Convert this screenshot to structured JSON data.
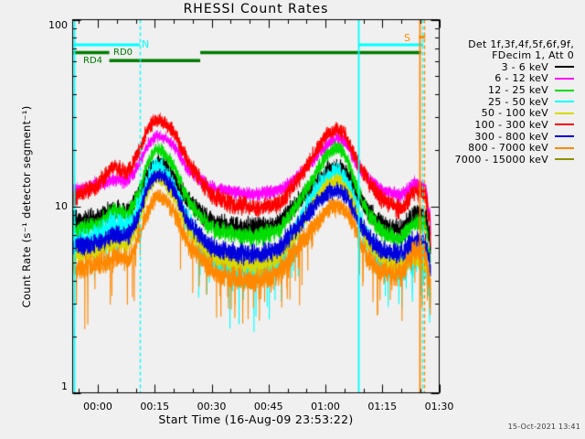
{
  "chart_data": {
    "type": "line",
    "title": "RHESSI Count Rates",
    "xlabel": "Start Time (16-Aug-09 23:53:22)",
    "ylabel": "Count Rate (s⁻¹ detector segment⁻¹)",
    "timestamp": "15-Oct-2021 13:41",
    "background": "#f0f0f0",
    "x_axis": {
      "range_minutes": [
        -6.633,
        90
      ],
      "minor_tick_minutes": 5,
      "major_ticks": [
        {
          "t": 0,
          "label": "00:00"
        },
        {
          "t": 15,
          "label": "00:15"
        },
        {
          "t": 30,
          "label": "00:30"
        },
        {
          "t": 45,
          "label": "00:45"
        },
        {
          "t": 60,
          "label": "01:00"
        },
        {
          "t": 75,
          "label": "01:15"
        },
        {
          "t": 90,
          "label": "01:30"
        }
      ]
    },
    "y_axis": {
      "scale": "log",
      "range": [
        1,
        100
      ],
      "major_ticks": [
        {
          "v": 1,
          "label": "1"
        },
        {
          "v": 10,
          "label": "10"
        },
        {
          "v": 100,
          "label": "100"
        }
      ]
    },
    "legend": {
      "header_lines": [
        "Det 1f,3f,4f,5f,6f,9f,",
        "FDecim 1, Att 0"
      ]
    },
    "control_times_minutes": [
      -6.6,
      -3,
      0,
      4,
      8,
      11,
      13.5,
      15.5,
      17.5,
      20,
      24,
      30,
      36,
      42,
      48,
      53,
      57,
      60.5,
      63,
      65.5,
      68,
      71,
      75,
      80,
      83.5,
      85.3,
      86.9,
      87.4,
      87.7
    ],
    "series": [
      {
        "name": "3 - 6 keV",
        "color": "#000000",
        "noise_k": 0.036,
        "spiky": false,
        "values": [
          8.3,
          8.4,
          8.6,
          9.6,
          9.3,
          11.5,
          15.5,
          17,
          16.5,
          14.5,
          10.5,
          8.2,
          7.7,
          7.6,
          8.2,
          10.5,
          13,
          15.5,
          16.5,
          15.3,
          12,
          9.5,
          7.8,
          7.4,
          9.1,
          9,
          8.8,
          7,
          5
        ]
      },
      {
        "name": "6 - 12 keV",
        "color": "#ff00ff",
        "noise_k": 0.026,
        "spiky": false,
        "values": [
          12,
          12.5,
          13,
          14,
          13.5,
          17,
          22,
          24,
          23.5,
          21,
          15.5,
          12.5,
          11.8,
          11.5,
          12.3,
          14.5,
          18,
          21.5,
          23.5,
          22,
          17,
          14.3,
          12.2,
          11.4,
          13.3,
          13,
          12.5,
          9.5,
          6.5
        ]
      },
      {
        "name": "12 - 25 keV",
        "color": "#00dd00",
        "noise_k": 0.03,
        "spiky": false,
        "values": [
          7.3,
          7.7,
          8,
          9.5,
          9,
          12,
          18,
          20.5,
          19.5,
          16.5,
          10.5,
          7.6,
          7.0,
          6.8,
          7.5,
          10.5,
          14.5,
          19,
          21,
          18.5,
          13,
          9.3,
          7.2,
          6.7,
          8.4,
          8,
          7.8,
          6,
          4
        ]
      },
      {
        "name": "25 - 50 keV",
        "color": "#00ffff",
        "noise_k": 0.045,
        "spiky": true,
        "values": [
          6.3,
          6.6,
          6.8,
          8,
          7.6,
          10,
          14.5,
          16.5,
          15.5,
          13,
          8,
          5.2,
          4.5,
          4.3,
          5.0,
          8,
          11.5,
          14.3,
          15.5,
          14,
          10,
          6.6,
          5.0,
          4.6,
          5.4,
          5,
          4.9,
          4,
          2.8
        ]
      },
      {
        "name": "50 - 100 keV",
        "color": "#d8d800",
        "noise_k": 0.03,
        "spiky": false,
        "values": [
          5.4,
          5.6,
          5.8,
          6.4,
          6.1,
          8.5,
          12.5,
          14.5,
          13.5,
          11.5,
          7.3,
          5.4,
          4.9,
          4.8,
          5.3,
          7.5,
          10.5,
          13,
          14,
          12.8,
          9.5,
          6.4,
          5.1,
          4.8,
          5.4,
          5.1,
          5,
          4.2,
          3
        ]
      },
      {
        "name": "100 - 300 keV",
        "color": "#ff0000",
        "noise_k": 0.034,
        "spiky": false,
        "values": [
          11,
          12,
          13,
          16.5,
          15,
          20,
          27,
          29,
          28,
          25,
          17,
          11.5,
          10.2,
          9.8,
          10.3,
          14,
          19,
          24.5,
          26,
          24,
          18,
          14,
          10.8,
          9.4,
          12.3,
          12,
          11.5,
          8.5,
          5.5
        ]
      },
      {
        "name": "300 - 800 keV",
        "color": "#0000dd",
        "noise_k": 0.032,
        "spiky": false,
        "values": [
          6.1,
          6.25,
          6.4,
          7,
          6.8,
          9.2,
          13.5,
          15,
          14.3,
          12.3,
          8,
          6.0,
          5.6,
          5.5,
          6.0,
          8,
          10,
          11.8,
          12.2,
          11.5,
          9,
          6.9,
          5.8,
          5.6,
          6.7,
          6.4,
          6.2,
          5.2,
          3.8
        ]
      },
      {
        "name": "800 - 7000 keV",
        "color": "#ff8800",
        "noise_k": 0.034,
        "spiky": true,
        "values": [
          4.6,
          4.75,
          4.9,
          5.3,
          5.1,
          7,
          10,
          11.3,
          10.8,
          9.3,
          6.2,
          4.5,
          4.1,
          4.0,
          4.4,
          6.2,
          7.8,
          9.5,
          10.3,
          9.6,
          7.5,
          5.3,
          4.4,
          4.3,
          5.9,
          5.7,
          5.5,
          4.3,
          3
        ]
      },
      {
        "name": "7000 - 15000 keV",
        "color": "#8f8f00",
        "noise_k": 0,
        "spiky": false,
        "values": null
      }
    ],
    "flags": {
      "night_color": "#00ffff",
      "saa_color": "#ff8800",
      "decim_color": "#007a00",
      "night_label": "N",
      "saa_label": "S",
      "rd0_label": "RD0",
      "rd4_label": "RD4",
      "night_bars": [
        [
          -6.43,
          11.07
        ],
        [
          68.77,
          85.79
        ]
      ],
      "saa_marker": [
        84.6,
        86.3
      ],
      "rd0_bars": [
        [
          -6.43,
          3.03
        ],
        [
          27.0,
          85.24
        ]
      ],
      "rd4_bars": [
        [
          3.03,
          27.0
        ]
      ],
      "vlines": [
        {
          "t": -6.35,
          "color": "#00ffff",
          "style": "solid"
        },
        {
          "t": 11.07,
          "color": "#00ffff",
          "style": "dashed"
        },
        {
          "t": 68.77,
          "color": "#00ffff",
          "style": "solid"
        },
        {
          "t": 85.53,
          "color": "#00ffff",
          "style": "dashed"
        },
        {
          "t": 84.93,
          "color": "#ff8800",
          "style": "solid"
        },
        {
          "t": 86.01,
          "color": "#ff8800",
          "style": "dashed"
        }
      ]
    }
  }
}
